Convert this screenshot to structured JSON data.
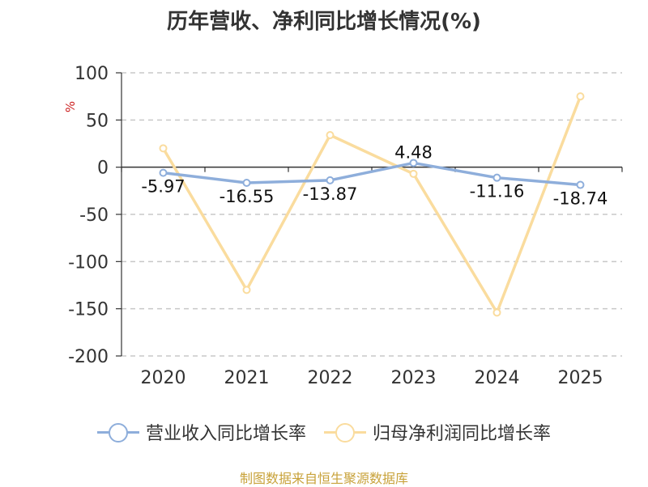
{
  "chart_data": {
    "type": "line",
    "title": "历年营收、净利同比增长情况(%)",
    "ylabel": "%",
    "xlabel": "",
    "categories": [
      "2020",
      "2021",
      "2022",
      "2023",
      "2024",
      "2025"
    ],
    "yticks": [
      100,
      50,
      0,
      -50,
      -100,
      -150,
      -200
    ],
    "ylim": [
      -200,
      100
    ],
    "grid": true,
    "legend_placement": "bottom",
    "series": [
      {
        "name": "营业收入同比增长率",
        "color": "#8eaedb",
        "values": [
          -5.97,
          -16.55,
          -13.87,
          4.48,
          -11.16,
          -18.74
        ],
        "labels": [
          "-5.97",
          "-16.55",
          "-13.87",
          "4.48",
          "-11.16",
          "-18.74"
        ]
      },
      {
        "name": "归母净利润同比增长率",
        "color": "#fadc9e",
        "values": [
          20,
          -130,
          34,
          -7,
          -154,
          75
        ]
      }
    ]
  },
  "source": "制图数据来自恒生聚源数据库"
}
